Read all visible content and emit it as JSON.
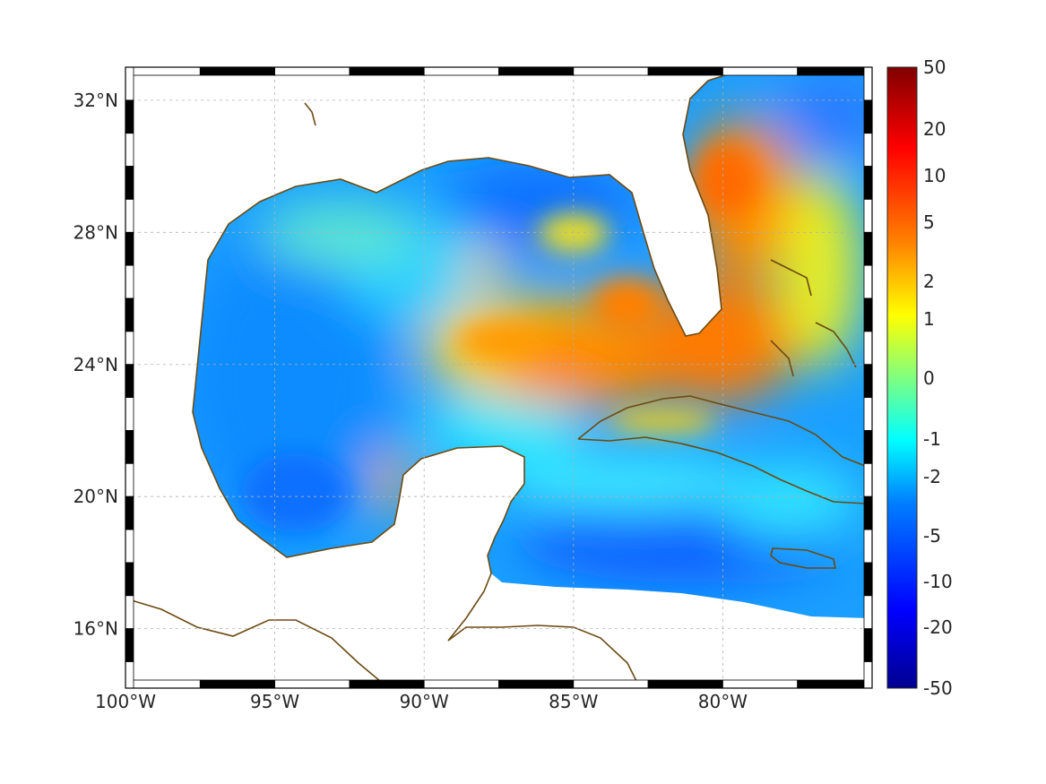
{
  "map": {
    "lat_labels": [
      "32°N",
      "28°N",
      "24°N",
      "20°N",
      "16°N"
    ],
    "lat_values": [
      32,
      28,
      24,
      20,
      16
    ],
    "lon_labels": [
      "100°W",
      "95°W",
      "90°W",
      "85°W",
      "80°W"
    ],
    "lon_values": [
      -100,
      -95,
      -90,
      -85,
      -80
    ],
    "extent": {
      "lon_min": -100,
      "lon_max": -75,
      "lat_min": 14.2,
      "lat_max": 33
    },
    "grid": true,
    "coastline_color": "#6b4a12",
    "land_color": "#ffffff"
  },
  "colorbar": {
    "labels": [
      "50",
      "20",
      "10",
      "5",
      "2",
      "1",
      "0",
      "-1",
      "-2",
      "-5",
      "-10",
      "-20",
      "-50"
    ],
    "colormap": "jet",
    "colors": [
      "#00008f",
      "#0000ff",
      "#0080ff",
      "#00ffff",
      "#80ff80",
      "#ffff00",
      "#ff8000",
      "#ff0000",
      "#800000"
    ]
  }
}
